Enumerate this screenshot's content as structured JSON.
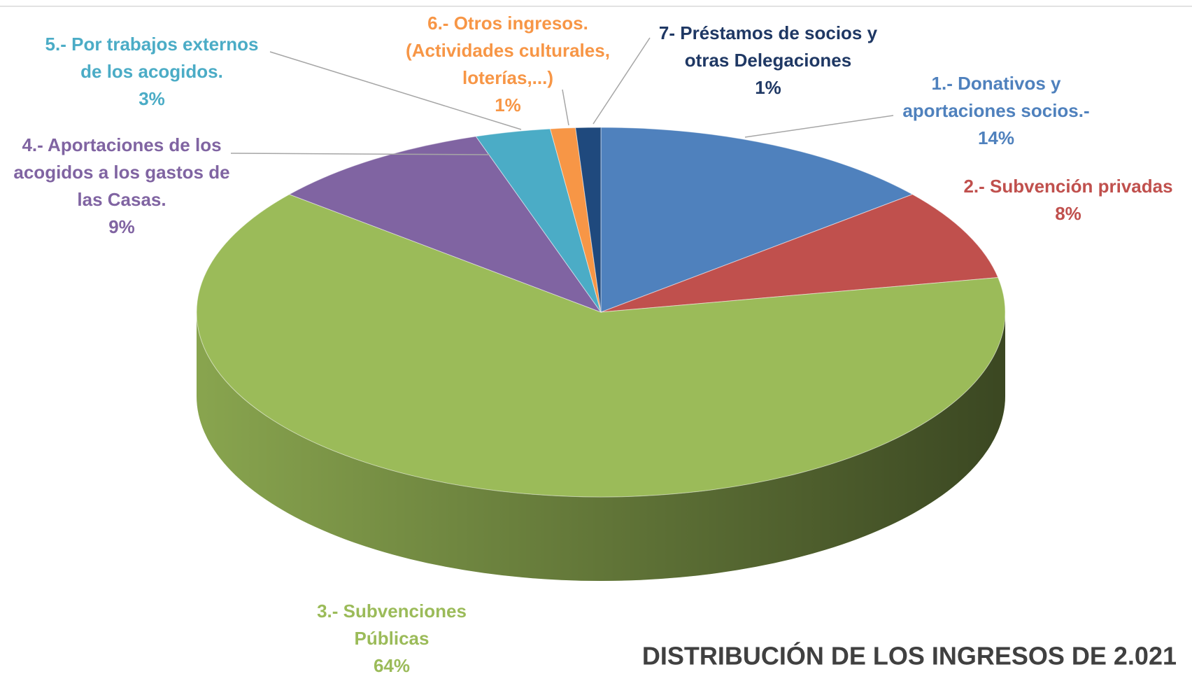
{
  "chart_data": {
    "type": "pie3d",
    "title": "DISTRIBUCIÓN DE LOS INGRESOS DE 2.021",
    "categories": [
      [
        "1.- Donativos y",
        "aportaciones socios.-"
      ],
      [
        "2.- Subvención privadas"
      ],
      [
        "3.- Subvenciones",
        "Públicas"
      ],
      [
        "4.- Aportaciones de los",
        "acogidos a los gastos de",
        "las Casas."
      ],
      [
        "5.- Por trabajos externos",
        "de los acogidos."
      ],
      [
        "6.- Otros ingresos.",
        "(Actividades culturales,",
        "loterías,...)"
      ],
      [
        "7- Préstamos de socios y",
        "otras Delegaciones"
      ]
    ],
    "values": [
      14,
      8,
      64,
      9,
      3,
      1,
      1
    ],
    "value_labels": [
      "14%",
      "8%",
      "64%",
      "9%",
      "3%",
      "1%",
      "1%"
    ],
    "colors": [
      "#4f81bd",
      "#c0504d",
      "#9bbb59",
      "#8064a2",
      "#4bacc6",
      "#f79646",
      "#1f497d"
    ],
    "label_colors": [
      "#4f81bd",
      "#c0504d",
      "#9bbb59",
      "#8064a2",
      "#4bacc6",
      "#f79646",
      "#1f3864"
    ]
  }
}
